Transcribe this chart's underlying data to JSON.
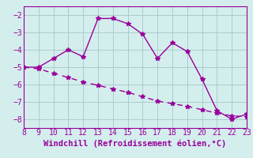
{
  "line1_x": [
    8,
    9,
    10,
    11,
    12,
    13,
    14,
    15,
    16,
    17,
    18,
    19,
    20,
    21,
    22,
    23
  ],
  "line1_y": [
    -5.0,
    -5.0,
    -4.5,
    -4.0,
    -4.4,
    -2.2,
    -2.2,
    -2.5,
    -3.1,
    -4.5,
    -3.6,
    -4.1,
    -5.7,
    -7.5,
    -8.0,
    -7.7
  ],
  "line2_x": [
    8,
    9,
    10,
    11,
    12,
    13,
    14,
    15,
    16,
    17,
    18,
    19,
    20,
    21,
    22,
    23
  ],
  "line2_y": [
    -5.0,
    -5.1,
    -5.35,
    -5.6,
    -5.85,
    -6.05,
    -6.25,
    -6.45,
    -6.7,
    -6.95,
    -7.1,
    -7.25,
    -7.45,
    -7.65,
    -7.8,
    -7.85
  ],
  "color": "#990099",
  "bg_color": "#d4eeee",
  "grid_color": "#aacccc",
  "xlabel": "Windchill (Refroidissement éolien,°C)",
  "xlim": [
    8,
    23
  ],
  "ylim": [
    -8.5,
    -1.5
  ],
  "yticks": [
    -8,
    -7,
    -6,
    -5,
    -4,
    -3,
    -2
  ],
  "xticks": [
    8,
    9,
    10,
    11,
    12,
    13,
    14,
    15,
    16,
    17,
    18,
    19,
    20,
    21,
    22,
    23
  ],
  "marker": "*",
  "markersize": 4,
  "linewidth": 1.0,
  "tick_fontsize": 7,
  "xlabel_fontsize": 7.5
}
